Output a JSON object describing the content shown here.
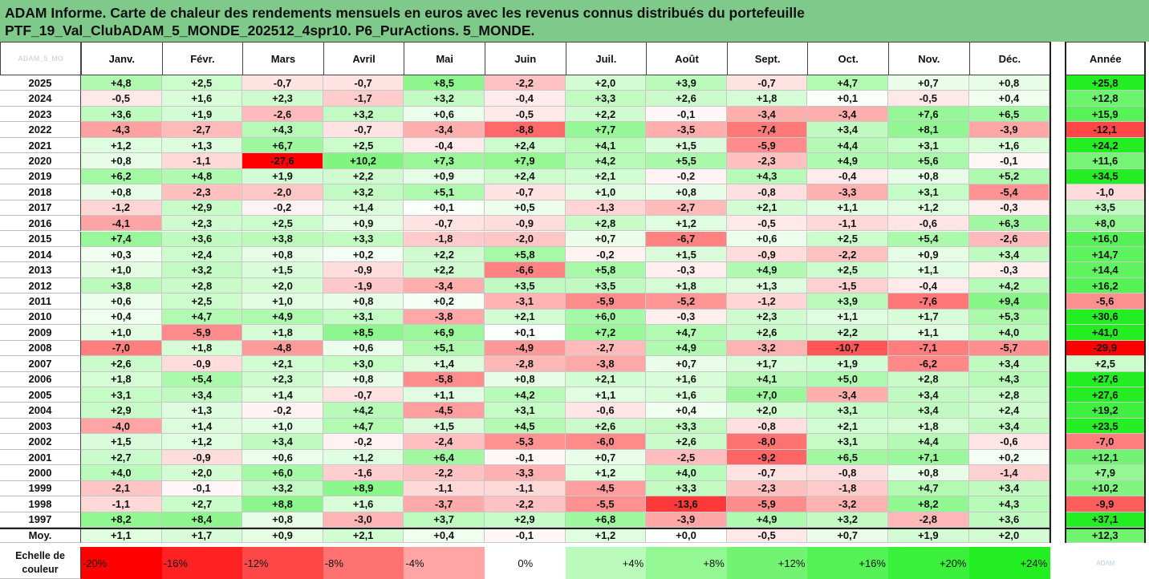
{
  "title": {
    "line1": "ADAM Informe. Carte de chaleur des rendements mensuels en euros avec les revenus connus distribués du portefeuille",
    "line2": "PTF_19_Val_ClubADAM_5_MONDE_202512_4spr10. P6_PurActions. 5_MONDE."
  },
  "corner_label": "ADAM_5_MO",
  "chart_data": {
    "type": "heatmap",
    "columns": [
      "Janv.",
      "Févr.",
      "Mars",
      "Avril",
      "Mai",
      "Juin",
      "Juil.",
      "Août",
      "Sept.",
      "Oct.",
      "Nov.",
      "Déc."
    ],
    "year_column": "Année",
    "rows": [
      {
        "year": "2025",
        "values": [
          "+4,8",
          "+2,5",
          "-0,7",
          "-0,7",
          "+8,5",
          "-2,2",
          "+2,0",
          "+3,9",
          "-0,7",
          "+4,7",
          "+0,7",
          "+0,8"
        ],
        "annual": "+25,8"
      },
      {
        "year": "2024",
        "values": [
          "-0,5",
          "+1,6",
          "+2,3",
          "-1,7",
          "+3,2",
          "-0,4",
          "+3,3",
          "+2,6",
          "+1,8",
          "+0,1",
          "-0,5",
          "+0,4"
        ],
        "annual": "+12,8"
      },
      {
        "year": "2023",
        "values": [
          "+3,6",
          "+1,9",
          "-2,6",
          "+3,2",
          "+0,6",
          "-0,5",
          "+2,2",
          "-0,1",
          "-3,4",
          "-3,4",
          "+7,6",
          "+6,5"
        ],
        "annual": "+15,9"
      },
      {
        "year": "2022",
        "values": [
          "-4,3",
          "-2,7",
          "+4,3",
          "-0,7",
          "-3,4",
          "-8,8",
          "+7,7",
          "-3,5",
          "-7,4",
          "+3,4",
          "+8,1",
          "-3,9"
        ],
        "annual": "-12,1"
      },
      {
        "year": "2021",
        "values": [
          "+1,2",
          "+1,3",
          "+6,7",
          "+2,5",
          "-0,4",
          "+2,4",
          "+4,1",
          "+1,5",
          "-5,9",
          "+4,4",
          "+3,1",
          "+1,6"
        ],
        "annual": "+24,2"
      },
      {
        "year": "2020",
        "values": [
          "+0,8",
          "-1,1",
          "-27,6",
          "+10,2",
          "+7,3",
          "+7,9",
          "+4,2",
          "+5,5",
          "-2,3",
          "+4,9",
          "+5,6",
          "-0,1"
        ],
        "annual": "+11,6"
      },
      {
        "year": "2019",
        "values": [
          "+6,2",
          "+4,8",
          "+1,9",
          "+2,2",
          "+0,9",
          "+2,4",
          "+2,1",
          "-0,2",
          "+4,3",
          "-0,4",
          "+0,8",
          "+5,2"
        ],
        "annual": "+34,5"
      },
      {
        "year": "2018",
        "values": [
          "+0,8",
          "-2,3",
          "-2,0",
          "+3,2",
          "+5,1",
          "-0,7",
          "+1,0",
          "+0,8",
          "-0,8",
          "-3,3",
          "+3,1",
          "-5,4"
        ],
        "annual": "-1,0"
      },
      {
        "year": "2017",
        "values": [
          "-1,2",
          "+2,9",
          "-0,2",
          "+1,4",
          "+0,1",
          "+0,5",
          "-1,3",
          "-2,7",
          "+2,1",
          "+1,1",
          "+1,2",
          "-0,3"
        ],
        "annual": "+3,5"
      },
      {
        "year": "2016",
        "values": [
          "-4,1",
          "+2,3",
          "+2,5",
          "+0,9",
          "-0,7",
          "-0,9",
          "+2,8",
          "+1,2",
          "-0,5",
          "-1,1",
          "-0,6",
          "+6,3"
        ],
        "annual": "+8,0"
      },
      {
        "year": "2015",
        "values": [
          "+7,4",
          "+3,6",
          "+3,8",
          "+3,3",
          "-1,8",
          "-2,0",
          "+0,7",
          "-6,7",
          "+0,6",
          "+2,5",
          "+5,4",
          "-2,6"
        ],
        "annual": "+16,0"
      },
      {
        "year": "2014",
        "values": [
          "+0,3",
          "+2,4",
          "+0,8",
          "+0,2",
          "+2,2",
          "+5,8",
          "-0,2",
          "+1,5",
          "-0,9",
          "-2,2",
          "+0,9",
          "+3,4"
        ],
        "annual": "+14,7"
      },
      {
        "year": "2013",
        "values": [
          "+1,0",
          "+3,2",
          "+1,5",
          "-0,9",
          "+2,2",
          "-6,6",
          "+5,8",
          "-0,3",
          "+4,9",
          "+2,5",
          "+1,1",
          "-0,3"
        ],
        "annual": "+14,4"
      },
      {
        "year": "2012",
        "values": [
          "+3,8",
          "+2,8",
          "+2,0",
          "-1,9",
          "-3,4",
          "+3,5",
          "+3,5",
          "+1,8",
          "+1,3",
          "-1,5",
          "-0,4",
          "+4,2"
        ],
        "annual": "+16,2"
      },
      {
        "year": "2011",
        "values": [
          "+0,6",
          "+2,5",
          "+1,0",
          "+0,8",
          "+0,2",
          "-3,1",
          "-5,9",
          "-5,2",
          "-1,2",
          "+3,9",
          "-7,6",
          "+9,4"
        ],
        "annual": "-5,6"
      },
      {
        "year": "2010",
        "values": [
          "+0,4",
          "+4,7",
          "+4,9",
          "+3,1",
          "-3,8",
          "+2,1",
          "+6,0",
          "-0,3",
          "+2,3",
          "+1,1",
          "+1,7",
          "+5,3"
        ],
        "annual": "+30,6"
      },
      {
        "year": "2009",
        "values": [
          "+1,0",
          "-5,9",
          "+1,8",
          "+8,5",
          "+6,9",
          "+0,1",
          "+7,2",
          "+4,7",
          "+2,6",
          "+2,2",
          "+1,1",
          "+4,0"
        ],
        "annual": "+41,0"
      },
      {
        "year": "2008",
        "values": [
          "-7,0",
          "+1,8",
          "-4,8",
          "+0,6",
          "+5,1",
          "-4,9",
          "-2,7",
          "+4,9",
          "-3,2",
          "-10,7",
          "-7,1",
          "-5,7"
        ],
        "annual": "-29,9"
      },
      {
        "year": "2007",
        "values": [
          "+2,6",
          "-0,9",
          "+2,1",
          "+3,0",
          "+1,4",
          "-2,8",
          "-3,8",
          "+0,7",
          "+1,7",
          "+1,9",
          "-6,2",
          "+3,4"
        ],
        "annual": "+2,5"
      },
      {
        "year": "2006",
        "values": [
          "+1,8",
          "+5,4",
          "+2,3",
          "+0,8",
          "-5,8",
          "+0,8",
          "+2,1",
          "+1,6",
          "+4,1",
          "+5,0",
          "+2,8",
          "+4,3"
        ],
        "annual": "+27,6"
      },
      {
        "year": "2005",
        "values": [
          "+3,1",
          "+3,4",
          "+1,4",
          "-0,7",
          "+1,1",
          "+4,2",
          "+1,1",
          "+1,6",
          "+7,0",
          "-3,4",
          "+3,4",
          "+2,8"
        ],
        "annual": "+27,6"
      },
      {
        "year": "2004",
        "values": [
          "+2,9",
          "+1,3",
          "-0,2",
          "+4,2",
          "-4,5",
          "+3,1",
          "-0,6",
          "+0,4",
          "+2,0",
          "+3,1",
          "+3,4",
          "+2,4"
        ],
        "annual": "+19,2"
      },
      {
        "year": "2003",
        "values": [
          "-4,0",
          "+1,4",
          "+1,0",
          "+4,7",
          "+1,5",
          "+4,5",
          "+2,6",
          "+3,3",
          "-0,8",
          "+2,1",
          "+1,8",
          "+3,4"
        ],
        "annual": "+23,5"
      },
      {
        "year": "2002",
        "values": [
          "+1,5",
          "+1,2",
          "+3,4",
          "-0,2",
          "-2,4",
          "-5,3",
          "-6,0",
          "+2,6",
          "-8,0",
          "+3,1",
          "+4,4",
          "-0,6"
        ],
        "annual": "-7,0"
      },
      {
        "year": "2001",
        "values": [
          "+2,7",
          "-0,9",
          "+0,6",
          "+1,2",
          "+6,4",
          "-0,1",
          "+0,7",
          "-2,5",
          "-9,2",
          "+6,5",
          "+7,1",
          "+0,2"
        ],
        "annual": "+12,1"
      },
      {
        "year": "2000",
        "values": [
          "+4,0",
          "+2,0",
          "+6,0",
          "-1,6",
          "-2,2",
          "-3,3",
          "+1,2",
          "+4,0",
          "-0,7",
          "-0,8",
          "+0,8",
          "-1,4"
        ],
        "annual": "+7,9"
      },
      {
        "year": "1999",
        "values": [
          "-2,1",
          "-0,1",
          "+3,2",
          "+8,9",
          "-1,1",
          "-1,1",
          "-4,5",
          "+3,3",
          "-2,3",
          "-1,8",
          "+4,7",
          "+3,4"
        ],
        "annual": "+10,2"
      },
      {
        "year": "1998",
        "values": [
          "-1,1",
          "+2,7",
          "+8,8",
          "+1,6",
          "-3,7",
          "-2,2",
          "-5,5",
          "-13,6",
          "-5,9",
          "-3,2",
          "+8,2",
          "+4,3"
        ],
        "annual": "-9,9"
      },
      {
        "year": "1997",
        "values": [
          "+8,2",
          "+8,4",
          "+0,8",
          "-3,0",
          "+3,7",
          "+2,9",
          "+6,8",
          "-3,9",
          "+4,9",
          "+3,2",
          "-2,8",
          "+3,6"
        ],
        "annual": "+37,1"
      }
    ],
    "average": {
      "label": "Moy.",
      "values": [
        "+1,1",
        "+1,7",
        "+0,9",
        "+2,1",
        "+0,4",
        "-0,1",
        "+1,2",
        "+0,0",
        "-0,5",
        "+0,7",
        "+1,9",
        "+2,0"
      ],
      "annual": "+12,3"
    },
    "scale": {
      "label_line1": "Echelle de",
      "label_line2": "couleur",
      "steps": [
        "-20%",
        "-16%",
        "-12%",
        "-8%",
        "-4%",
        "0%",
        "+4%",
        "+8%",
        "+12%",
        "+16%",
        "+20%",
        "+24%"
      ],
      "step_values": [
        -20,
        -16,
        -12,
        -8,
        -4,
        0,
        4,
        8,
        12,
        16,
        20,
        24
      ]
    },
    "logo_text": "ADAM"
  },
  "colors": {
    "title_bg": "#7fc98a",
    "negative_max": "#ff0000",
    "positive_max": "#22ee22",
    "neutral": "#ffffff"
  }
}
